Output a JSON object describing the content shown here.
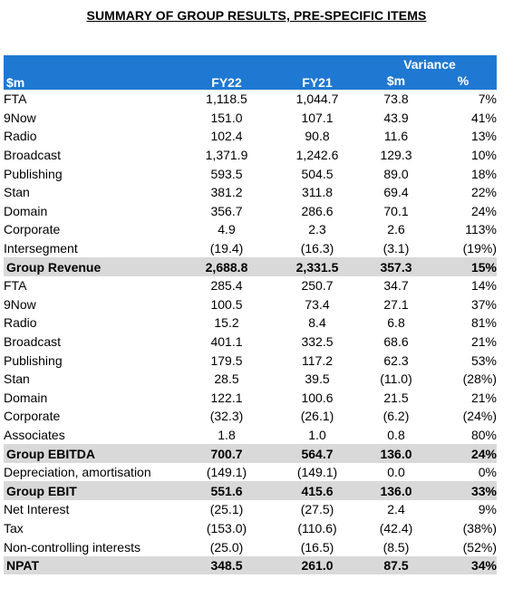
{
  "title": "SUMMARY OF GROUP RESULTS, PRE-SPECIFIC ITEMS",
  "header": {
    "unit": "$m",
    "fy22": "FY22",
    "fy21": "FY21",
    "variance": "Variance",
    "var_dollar": "$m",
    "var_pct": "%"
  },
  "rows": [
    {
      "label": "FTA",
      "fy22": "1,118.5",
      "fy21": "1,044.7",
      "var": "73.8",
      "pct": "7%",
      "indent": true
    },
    {
      "label": "9Now",
      "fy22": "151.0",
      "fy21": "107.1",
      "var": "43.9",
      "pct": "41%",
      "indent": true
    },
    {
      "label": "Radio",
      "fy22": "102.4",
      "fy21": "90.8",
      "var": "11.6",
      "pct": "13%",
      "indent": true
    },
    {
      "label": "Broadcast",
      "fy22": "1,371.9",
      "fy21": "1,242.6",
      "var": "129.3",
      "pct": "10%"
    },
    {
      "label": "Publishing",
      "fy22": "593.5",
      "fy21": "504.5",
      "var": "89.0",
      "pct": "18%"
    },
    {
      "label": "Stan",
      "fy22": "381.2",
      "fy21": "311.8",
      "var": "69.4",
      "pct": "22%"
    },
    {
      "label": "Domain",
      "fy22": "356.7",
      "fy21": "286.6",
      "var": "70.1",
      "pct": "24%"
    },
    {
      "label": "Corporate",
      "fy22": "4.9",
      "fy21": "2.3",
      "var": "2.6",
      "pct": "113%"
    },
    {
      "label": "Intersegment",
      "fy22": "(19.4)",
      "fy21": "(16.3)",
      "var": "(3.1)",
      "pct": "(19%)"
    },
    {
      "label": "Group Revenue",
      "fy22": "2,688.8",
      "fy21": "2,331.5",
      "var": "357.3",
      "pct": "15%",
      "total": true
    },
    {
      "label": "FTA",
      "fy22": "285.4",
      "fy21": "250.7",
      "var": "34.7",
      "pct": "14%",
      "indent": true
    },
    {
      "label": "9Now",
      "fy22": "100.5",
      "fy21": "73.4",
      "var": "27.1",
      "pct": "37%",
      "indent": true
    },
    {
      "label": "Radio",
      "fy22": "15.2",
      "fy21": "8.4",
      "var": "6.8",
      "pct": "81%",
      "indent": true
    },
    {
      "label": "Broadcast",
      "fy22": "401.1",
      "fy21": "332.5",
      "var": "68.6",
      "pct": "21%"
    },
    {
      "label": "Publishing",
      "fy22": "179.5",
      "fy21": "117.2",
      "var": "62.3",
      "pct": "53%"
    },
    {
      "label": "Stan",
      "fy22": "28.5",
      "fy21": "39.5",
      "var": "(11.0)",
      "pct": "(28%)"
    },
    {
      "label": "Domain",
      "fy22": "122.1",
      "fy21": "100.6",
      "var": "21.5",
      "pct": "21%"
    },
    {
      "label": "Corporate",
      "fy22": "(32.3)",
      "fy21": "(26.1)",
      "var": "(6.2)",
      "pct": "(24%)"
    },
    {
      "label": "Associates",
      "fy22": "1.8",
      "fy21": "1.0",
      "var": "0.8",
      "pct": "80%"
    },
    {
      "label": "Group EBITDA",
      "fy22": "700.7",
      "fy21": "564.7",
      "var": "136.0",
      "pct": "24%",
      "total": true
    },
    {
      "label": "Depreciation, amortisation",
      "fy22": "(149.1)",
      "fy21": "(149.1)",
      "var": "0.0",
      "pct": "0%"
    },
    {
      "label": "Group EBIT",
      "fy22": "551.6",
      "fy21": "415.6",
      "var": "136.0",
      "pct": "33%",
      "total": true
    },
    {
      "label": "Net Interest",
      "fy22": "(25.1)",
      "fy21": "(27.5)",
      "var": "2.4",
      "pct": "9%"
    },
    {
      "label": "Tax",
      "fy22": "(153.0)",
      "fy21": "(110.6)",
      "var": "(42.4)",
      "pct": "(38%)"
    },
    {
      "label": "Non-controlling interests",
      "fy22": "(25.0)",
      "fy21": "(16.5)",
      "var": "(8.5)",
      "pct": "(52%)"
    },
    {
      "label": "NPAT",
      "fy22": "348.5",
      "fy21": "261.0",
      "var": "87.5",
      "pct": "34%",
      "total": true
    }
  ]
}
